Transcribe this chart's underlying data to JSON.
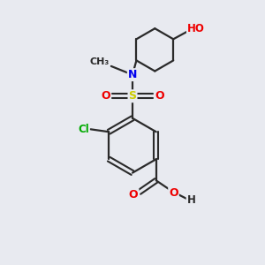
{
  "background_color": "#e8eaf0",
  "bond_color": "#2a2a2a",
  "atom_colors": {
    "N": "#0000ee",
    "S": "#cccc00",
    "O": "#ee0000",
    "Cl": "#00aa00",
    "C": "#2a2a2a",
    "H": "#2a2a2a"
  },
  "figsize": [
    3.0,
    3.0
  ],
  "dpi": 100
}
